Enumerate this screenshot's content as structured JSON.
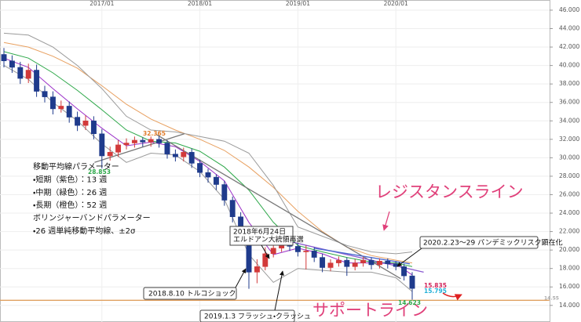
{
  "chart_data": {
    "type": "candlestick",
    "categories": [
      null,
      null,
      null,
      null,
      null,
      null,
      null,
      null,
      null,
      null,
      null,
      null,
      "2017/01",
      null,
      null,
      null,
      null,
      null,
      null,
      null,
      null,
      null,
      null,
      null,
      "2018/01",
      null,
      null,
      null,
      null,
      null,
      null,
      null,
      null,
      null,
      null,
      null,
      "2019/01",
      null,
      null,
      null,
      null,
      null,
      null,
      null,
      null,
      null,
      null,
      null,
      "2020/01",
      null,
      null
    ],
    "open": [
      41.2,
      40.5,
      39.8,
      38.6,
      39.5,
      37.2,
      36.6,
      35.3,
      35.6,
      34.4,
      33.5,
      34.0,
      32.6,
      30.2,
      30.6,
      31.4,
      31.6,
      31.9,
      31.7,
      32.0,
      31.6,
      30.4,
      30.1,
      30.6,
      29.4,
      28.4,
      27.9,
      27.1,
      25.4,
      23.6,
      21.8,
      17.6,
      18.2,
      19.6,
      20.2,
      20.6,
      20.4,
      19.8,
      19.9,
      19.2,
      18.1,
      18.6,
      18.9,
      18.2,
      18.6,
      18.9,
      18.4,
      18.8,
      18.5,
      18.2,
      17.2
    ],
    "high": [
      41.9,
      41.1,
      40.4,
      40.2,
      40.1,
      37.8,
      37.2,
      36.2,
      36.1,
      35.0,
      34.6,
      34.5,
      33.1,
      31.2,
      31.9,
      32.1,
      32.3,
      32.2,
      32.3,
      32.365,
      31.9,
      30.9,
      31.1,
      31.0,
      29.8,
      28.8,
      28.2,
      27.5,
      25.8,
      24.1,
      22.2,
      19.0,
      20.3,
      20.8,
      21.2,
      21.0,
      20.8,
      20.5,
      20.3,
      19.6,
      19.0,
      19.3,
      19.2,
      19.0,
      19.3,
      19.2,
      19.1,
      19.1,
      18.8,
      18.5,
      17.6
    ],
    "low": [
      39.8,
      39.2,
      38.0,
      38.1,
      36.6,
      36.0,
      34.7,
      34.9,
      33.8,
      32.9,
      33.0,
      32.0,
      28.853,
      29.7,
      30.1,
      30.9,
      31.1,
      31.2,
      31.2,
      31.1,
      29.9,
      29.6,
      29.6,
      28.9,
      27.9,
      27.3,
      26.5,
      24.8,
      23.0,
      21.1,
      15.8,
      16.4,
      17.8,
      19.2,
      19.8,
      19.9,
      19.3,
      17.9,
      18.7,
      17.6,
      17.7,
      18.2,
      17.2,
      17.8,
      18.2,
      17.9,
      18.0,
      18.0,
      17.8,
      16.7,
      14.623
    ],
    "close": [
      40.5,
      39.8,
      38.6,
      39.5,
      37.2,
      36.6,
      35.3,
      35.6,
      34.4,
      33.5,
      34.0,
      32.6,
      30.2,
      30.6,
      31.4,
      31.6,
      31.9,
      31.7,
      32.0,
      31.6,
      30.4,
      30.1,
      30.6,
      29.4,
      28.4,
      27.9,
      27.1,
      25.4,
      23.6,
      21.8,
      17.6,
      18.2,
      19.6,
      20.2,
      20.6,
      20.4,
      19.8,
      19.9,
      19.2,
      18.1,
      18.6,
      18.9,
      18.2,
      18.6,
      18.9,
      18.4,
      18.8,
      18.5,
      18.2,
      17.2,
      15.835
    ],
    "up_color": "#d23a3a",
    "down_color": "#1f3b8c",
    "lines": [
      {
        "color": "#9b30c8",
        "x": [
          0,
          3,
          6,
          9,
          12,
          15,
          18,
          21,
          24,
          27,
          30,
          33,
          36,
          39,
          42,
          45,
          48,
          50
        ],
        "values": [
          40.8,
          39.8,
          37.5,
          35.3,
          33.2,
          31.3,
          31.7,
          31.2,
          29.6,
          27.5,
          23.0,
          19.5,
          20.2,
          19.6,
          18.6,
          18.6,
          18.5,
          17.3
        ]
      },
      {
        "color": "#2ea84a",
        "x": [
          0,
          3,
          6,
          9,
          12,
          15,
          18,
          21,
          24,
          27,
          30,
          33,
          36,
          39,
          42,
          45,
          48,
          50
        ],
        "values": [
          41.5,
          40.8,
          39.2,
          37.3,
          35.2,
          33.0,
          31.8,
          31.6,
          30.7,
          29.0,
          26.5,
          23.0,
          20.5,
          19.8,
          19.2,
          18.7,
          18.6,
          18.2
        ]
      },
      {
        "color": "#e8a060",
        "x": [
          0,
          3,
          6,
          9,
          12,
          15,
          18,
          21,
          24,
          27,
          30,
          33,
          36,
          39,
          42,
          45,
          48,
          50
        ],
        "values": [
          42.5,
          42.0,
          41.0,
          39.7,
          37.8,
          35.8,
          34.2,
          33.0,
          32.0,
          30.8,
          29.0,
          26.8,
          24.2,
          22.0,
          20.3,
          19.4,
          18.9,
          18.6
        ]
      },
      {
        "color": "#9a9a9a",
        "x": [
          0,
          3,
          6,
          9,
          12,
          15,
          18,
          21,
          24,
          27,
          30,
          33,
          36,
          39,
          42,
          45,
          48,
          50
        ],
        "values": [
          43.5,
          43.3,
          42.0,
          40.0,
          37.5,
          34.5,
          33.0,
          32.8,
          32.3,
          31.8,
          30.5,
          27.0,
          22.5,
          21.5,
          20.5,
          19.8,
          19.6,
          19.8
        ]
      },
      {
        "color": "#9a9a9a",
        "x": [
          0,
          3,
          6,
          9,
          12,
          15,
          18,
          21,
          24,
          27,
          30,
          33,
          36,
          39,
          42,
          45,
          48,
          50
        ],
        "values": [
          40.0,
          38.5,
          36.0,
          34.0,
          31.5,
          29.5,
          30.5,
          30.3,
          28.5,
          25.5,
          19.5,
          16.5,
          18.0,
          17.8,
          17.6,
          17.6,
          17.0,
          15.5
        ]
      }
    ],
    "trend_lines": [
      {
        "color": "#777777",
        "x": [
          11.1,
          22.1
        ],
        "values": [
          29.5,
          32.6
        ]
      },
      {
        "color": "#777777",
        "x": [
          18.7,
          48.6
        ],
        "values": [
          32.5,
          16.9
        ]
      },
      {
        "color": "#8a5ad0",
        "x": [
          35.1,
          51.4
        ],
        "values": [
          20.9,
          17.6
        ]
      },
      {
        "color": "#4a6ad0",
        "x": [
          38.0,
          49.7
        ],
        "values": [
          20.2,
          18.5
        ]
      },
      {
        "color": "#e0a060",
        "x": [
          -0.5,
          66.8
        ],
        "values": [
          14.55,
          14.55
        ]
      }
    ],
    "ylim": [
      12.2,
      47.1
    ],
    "yticks": [
      {
        "value": 14,
        "label": "14.000"
      },
      {
        "value": 16,
        "label": "16.000"
      },
      {
        "value": 18,
        "label": "18.000"
      },
      {
        "value": 20,
        "label": "20.000"
      },
      {
        "value": 22,
        "label": "22.000"
      },
      {
        "value": 24,
        "label": "24.000"
      },
      {
        "value": 26,
        "label": "26.000"
      },
      {
        "value": 28,
        "label": "28.000"
      },
      {
        "value": 30,
        "label": "30.000"
      },
      {
        "value": 32,
        "label": "32.000"
      },
      {
        "value": 34,
        "label": "34.000"
      },
      {
        "value": 36,
        "label": "36.000"
      },
      {
        "value": 38,
        "label": "38.000"
      },
      {
        "value": 40,
        "label": "40.000"
      },
      {
        "value": 42,
        "label": "42.000"
      },
      {
        "value": 44,
        "label": "44.000"
      },
      {
        "value": 46,
        "label": "46.000"
      }
    ],
    "grid": true,
    "value_notes": [
      {
        "value": 32.365,
        "color": "#e07b2a"
      },
      {
        "value": 28.853,
        "color": "#2ea84a"
      },
      {
        "value": 15.835,
        "color": "#d2245a"
      },
      {
        "value": 15.795,
        "color": "#22b0d8"
      },
      {
        "value": 14.623,
        "color": "#2ea84a"
      },
      {
        "value": 14.55,
        "color": "#aaaaaa"
      }
    ],
    "params": [
      "移動平均線パラメーター",
      "・短期（紫色）：13 週",
      "・中期（緑色）：26 週",
      "・長期（橙色）：52 週",
      "ボリンジャーバンドパラメーター",
      "・26 週単純移動平均線、±2σ"
    ],
    "callouts": [
      [
        "2018年6月24日",
        "エルドアン大統領再選"
      ],
      [
        "2018.8.10 トルコショック"
      ],
      [
        "2019.1.3 フラッシュ・クラッシュ"
      ],
      [
        "2020.2.23〜29 パンデミックリスク顕在化"
      ]
    ],
    "resistance_label": "レジスタンスライン",
    "support_label": "サポートライン"
  }
}
